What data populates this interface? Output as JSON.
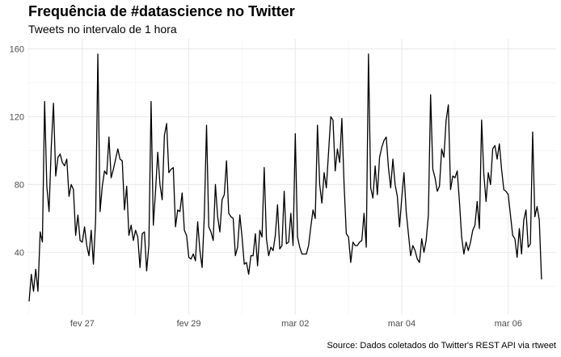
{
  "chart_data": {
    "type": "line",
    "title": "Frequência de #datascience no Twitter",
    "subtitle": "Tweets no intervalo de 1 hora",
    "caption": "Source: Dados coletados do Twitter's REST API via rtweet",
    "xlabel": "",
    "ylabel": "",
    "x_ticks": [
      {
        "label": "fev 27",
        "pos": 1.0
      },
      {
        "label": "fev 29",
        "pos": 3.0
      },
      {
        "label": "mar 02",
        "pos": 5.0
      },
      {
        "label": "mar 04",
        "pos": 7.0
      },
      {
        "label": "mar 06",
        "pos": 9.0
      }
    ],
    "xlim": [
      -0.03,
      9.9
    ],
    "y_ticks": [
      40,
      80,
      120,
      160
    ],
    "ylim": [
      3,
      166
    ],
    "grid": true,
    "line_color": "#000000",
    "series": [
      {
        "x_start": 0.0,
        "x_step": 0.041667,
        "values": [
          11,
          27,
          17,
          30,
          17,
          52,
          46,
          129,
          79,
          64,
          102,
          128,
          85,
          96,
          98,
          93,
          91,
          95,
          73,
          80,
          77,
          50,
          62,
          47,
          46,
          55,
          44,
          38,
          53,
          33,
          59,
          157,
          64,
          79,
          88,
          86,
          108,
          84,
          89,
          95,
          101,
          95,
          94,
          65,
          79,
          50,
          56,
          47,
          53,
          49,
          31,
          51,
          52,
          29,
          44,
          129,
          56,
          76,
          99,
          80,
          71,
          109,
          116,
          87,
          89,
          90,
          55,
          65,
          64,
          75,
          53,
          50,
          37,
          36,
          39,
          35,
          58,
          41,
          31,
          62,
          115,
          55,
          52,
          47,
          80,
          61,
          52,
          71,
          74,
          94,
          63,
          61,
          60,
          38,
          43,
          62,
          49,
          33,
          34,
          27,
          38,
          38,
          51,
          32,
          53,
          49,
          90,
          48,
          38,
          43,
          41,
          50,
          68,
          42,
          44,
          76,
          45,
          46,
          63,
          44,
          110,
          49,
          43,
          39,
          39,
          39,
          44,
          55,
          65,
          60,
          115,
          80,
          69,
          87,
          78,
          99,
          120,
          118,
          88,
          101,
          93,
          119,
          80,
          51,
          49,
          34,
          46,
          44,
          44,
          46,
          47,
          63,
          43,
          157,
          78,
          72,
          91,
          74,
          96,
          102,
          106,
          108,
          90,
          78,
          95,
          80,
          73,
          55,
          72,
          87,
          64,
          51,
          38,
          44,
          41,
          36,
          34,
          48,
          40,
          47,
          62,
          133,
          89,
          84,
          76,
          79,
          101,
          96,
          118,
          127,
          77,
          85,
          84,
          88,
          70,
          49,
          39,
          46,
          41,
          46,
          53,
          56,
          70,
          54,
          118,
          86,
          70,
          87,
          80,
          101,
          103,
          95,
          104,
          89,
          77,
          76,
          74,
          62,
          50,
          48,
          37,
          54,
          39,
          59,
          65,
          43,
          45,
          111,
          61,
          67,
          59,
          24
        ]
      }
    ]
  }
}
